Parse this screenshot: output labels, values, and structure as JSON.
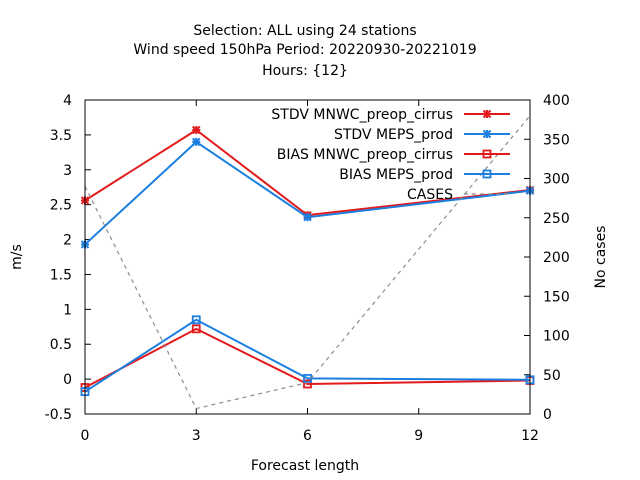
{
  "chart_data": {
    "type": "line",
    "title_lines": [
      "Selection: ALL using    24 stations",
      "Wind speed 150hPa   Period: 20220930-20221019",
      "Hours: {12}"
    ],
    "xlabel": "Forecast length",
    "ylabel": "m/s",
    "y2label": "No cases",
    "x": [
      0,
      3,
      6,
      9,
      12
    ],
    "xlim": [
      0,
      12
    ],
    "ylim": [
      -0.5,
      4
    ],
    "y2lim": [
      0,
      400
    ],
    "x_ticks": [
      "0",
      "3",
      "6",
      "9",
      "12"
    ],
    "y_ticks": [
      "-0.5",
      "0",
      "0.5",
      "1",
      "1.5",
      "2",
      "2.5",
      "3",
      "3.5",
      "4"
    ],
    "y2_ticks": [
      "0",
      "50",
      "100",
      "150",
      "200",
      "250",
      "300",
      "350",
      "400"
    ],
    "grid": false,
    "legend_position": "top-right",
    "series": [
      {
        "name": "STDV MNWC_preop_cirrus",
        "axis": "left",
        "x": [
          0,
          3,
          6,
          12
        ],
        "values": [
          2.56,
          3.57,
          2.35,
          2.71
        ],
        "color": "#e31a1c",
        "marker": "star"
      },
      {
        "name": "STDV MEPS_prod",
        "axis": "left",
        "x": [
          0,
          3,
          6,
          12
        ],
        "values": [
          1.93,
          3.4,
          2.32,
          2.7
        ],
        "color": "#1c7fe0",
        "marker": "star"
      },
      {
        "name": "BIAS MNWC_preop_cirrus",
        "axis": "left",
        "x": [
          0,
          3,
          6,
          12
        ],
        "values": [
          -0.12,
          0.72,
          -0.07,
          -0.02
        ],
        "color": "#e31a1c",
        "marker": "square"
      },
      {
        "name": "BIAS MEPS_prod",
        "axis": "left",
        "x": [
          0,
          3,
          6,
          12
        ],
        "values": [
          -0.18,
          0.85,
          0.01,
          -0.01
        ],
        "color": "#1c7fe0",
        "marker": "square"
      },
      {
        "name": "CASES",
        "axis": "right",
        "x": [
          0,
          3,
          6,
          12
        ],
        "values": [
          290,
          7,
          40,
          380
        ],
        "color": "#8c8c8c",
        "marker": "none",
        "dashed": true
      }
    ]
  }
}
